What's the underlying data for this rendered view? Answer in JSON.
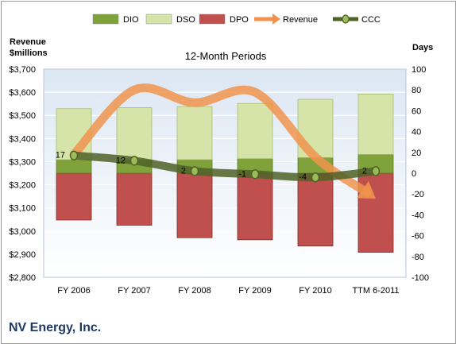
{
  "company": "NV Energy, Inc.",
  "chart_data": {
    "type": "bar",
    "title": "12-Month Periods",
    "left_axis_label": [
      "Revenue",
      "$millions"
    ],
    "right_axis_label": "Days",
    "categories": [
      "FY 2006",
      "FY 2007",
      "FY 2008",
      "FY 2009",
      "FY 2010",
      "TTM 6-2011"
    ],
    "left_ticks": [
      "$2,800",
      "$2,900",
      "$3,000",
      "$3,100",
      "$3,200",
      "$3,300",
      "$3,400",
      "$3,500",
      "$3,600",
      "$3,700"
    ],
    "right_ticks": [
      "-100",
      "-80",
      "-60",
      "-40",
      "-20",
      "0",
      "20",
      "40",
      "60",
      "80",
      "100"
    ],
    "left_ylim": [
      2800,
      3700
    ],
    "right_ylim": [
      -100,
      100
    ],
    "grid": true,
    "legend_position": "top",
    "series": [
      {
        "name": "DIO",
        "axis": "right",
        "kind": "stacked-bar",
        "color": "#7fa23a",
        "values": [
          13,
          13,
          13,
          14,
          15,
          18
        ]
      },
      {
        "name": "DSO",
        "axis": "right",
        "kind": "stacked-bar",
        "color": "#d6e4aa",
        "values": [
          49,
          50,
          51,
          53,
          56,
          58
        ]
      },
      {
        "name": "DPO",
        "axis": "right",
        "kind": "negative-bar",
        "color": "#c0504d",
        "values": [
          -45,
          -50,
          -62,
          -64,
          -70,
          -76
        ]
      },
      {
        "name": "Revenue",
        "axis": "left",
        "kind": "line",
        "color": "#f0944d",
        "values": [
          3330,
          3610,
          3555,
          3600,
          3320,
          3140
        ]
      },
      {
        "name": "CCC",
        "axis": "right",
        "kind": "line",
        "color": "#4f6228",
        "values": [
          17,
          12,
          2,
          -1,
          -4,
          2
        ]
      }
    ],
    "data_labels": [
      "17",
      "12",
      "2",
      "-1",
      "-4",
      "2"
    ]
  }
}
